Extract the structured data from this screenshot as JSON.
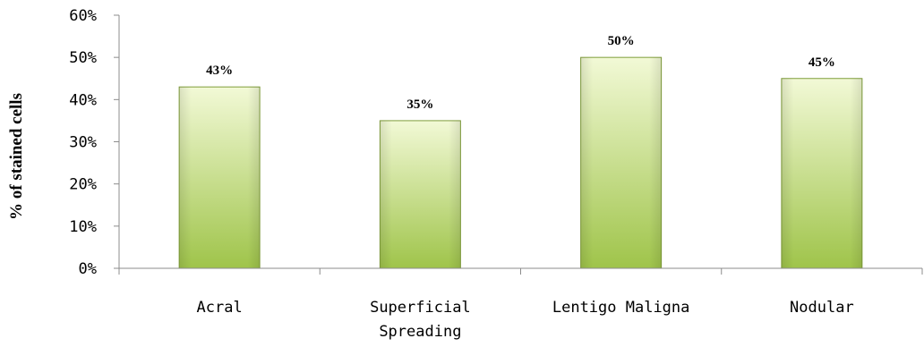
{
  "chart_data": {
    "type": "bar",
    "categories": [
      [
        "Acral"
      ],
      [
        "Superficial",
        "Spreading"
      ],
      [
        "Lentigo Maligna"
      ],
      [
        "Nodular"
      ]
    ],
    "values": [
      43,
      35,
      50,
      45
    ],
    "data_labels": [
      "43%",
      "35%",
      "50%",
      "45%"
    ],
    "ylabel": "% of stained cells",
    "xlabel": "",
    "ylim": [
      0,
      60
    ],
    "yticks": [
      0,
      10,
      20,
      30,
      40,
      50,
      60
    ],
    "ytick_labels": [
      "0%",
      "10%",
      "20%",
      "30%",
      "40%",
      "50%",
      "60%"
    ],
    "grid": false,
    "legend": "none",
    "bar_color_top": "#f2f9d6",
    "bar_color_bottom": "#9fc44a",
    "bar_edge_color": "#7f9d3a"
  }
}
